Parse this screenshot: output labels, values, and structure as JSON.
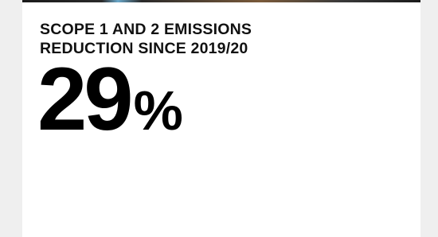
{
  "card": {
    "heading": [
      "SCOPE 1 AND 2 EMISSIONS",
      "REDUCTION SINCE 2019/20"
    ],
    "stat": {
      "number": 29,
      "unit": "%"
    }
  }
}
